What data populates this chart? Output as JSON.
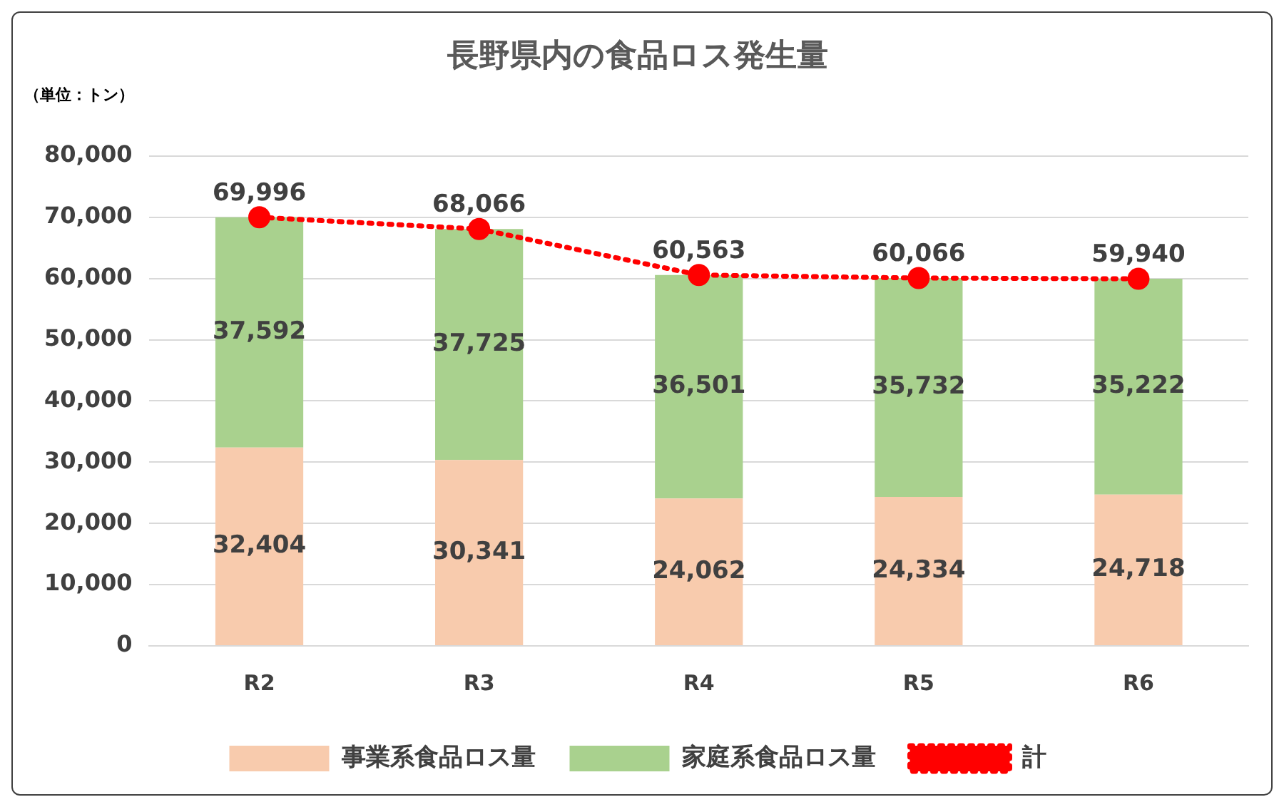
{
  "chart_data": {
    "type": "bar",
    "title": "長野県内の食品ロス発生量",
    "ylabel": "（単位：トン）",
    "categories": [
      "R2",
      "R3",
      "R4",
      "R5",
      "R6"
    ],
    "stacked": true,
    "series": [
      {
        "name": "事業系食品ロス量",
        "color": "#f8cbad",
        "values": [
          32404,
          30341,
          24062,
          24334,
          24718
        ],
        "value_labels": [
          "32,404",
          "30,341",
          "24,062",
          "24,334",
          "24,718"
        ]
      },
      {
        "name": "家庭系食品ロス量",
        "color": "#a9d18e",
        "values": [
          37592,
          37725,
          36501,
          35732,
          35222
        ],
        "value_labels": [
          "37,592",
          "37,725",
          "36,501",
          "35,732",
          "35,222"
        ]
      },
      {
        "name": "計",
        "type": "line",
        "color": "#ff0000",
        "values": [
          69996,
          68066,
          60563,
          60066,
          59940
        ],
        "value_labels": [
          "69,996",
          "68,066",
          "60,563",
          "60,066",
          "59,940"
        ]
      }
    ],
    "ylim": [
      0,
      80000
    ],
    "yticks": [
      {
        "value": 0,
        "label": "0"
      },
      {
        "value": 10000,
        "label": "10,000"
      },
      {
        "value": 20000,
        "label": "20,000"
      },
      {
        "value": 30000,
        "label": "30,000"
      },
      {
        "value": 40000,
        "label": "40,000"
      },
      {
        "value": 50000,
        "label": "50,000"
      },
      {
        "value": 60000,
        "label": "60,000"
      },
      {
        "value": 70000,
        "label": "70,000"
      },
      {
        "value": 80000,
        "label": "80,000"
      }
    ],
    "grid": "y",
    "legend": "bottom",
    "marker": "circle",
    "line_style": "dotted"
  }
}
